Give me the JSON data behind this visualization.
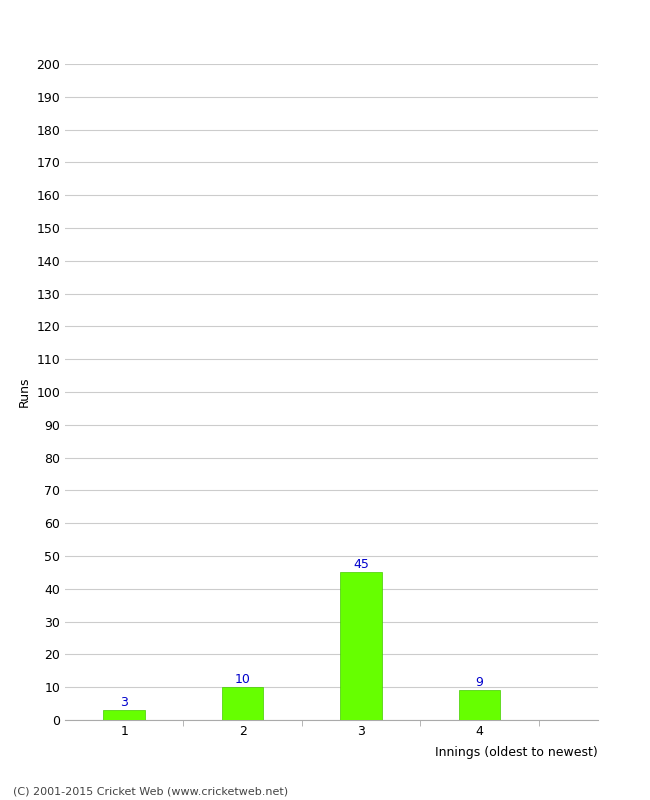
{
  "categories": [
    "1",
    "2",
    "3",
    "4"
  ],
  "values": [
    3,
    10,
    45,
    9
  ],
  "bar_color": "#66ff00",
  "bar_edge_color": "#44cc00",
  "ylabel": "Runs",
  "xlabel": "Innings (oldest to newest)",
  "ylim": [
    0,
    200
  ],
  "yticks": [
    0,
    10,
    20,
    30,
    40,
    50,
    60,
    70,
    80,
    90,
    100,
    110,
    120,
    130,
    140,
    150,
    160,
    170,
    180,
    190,
    200
  ],
  "label_color": "#0000cc",
  "label_fontsize": 9,
  "tick_fontsize": 9,
  "axis_label_fontsize": 9,
  "footer_text": "(C) 2001-2015 Cricket Web (www.cricketweb.net)",
  "footer_fontsize": 8,
  "background_color": "#ffffff",
  "grid_color": "#cccccc",
  "bar_width": 0.35
}
